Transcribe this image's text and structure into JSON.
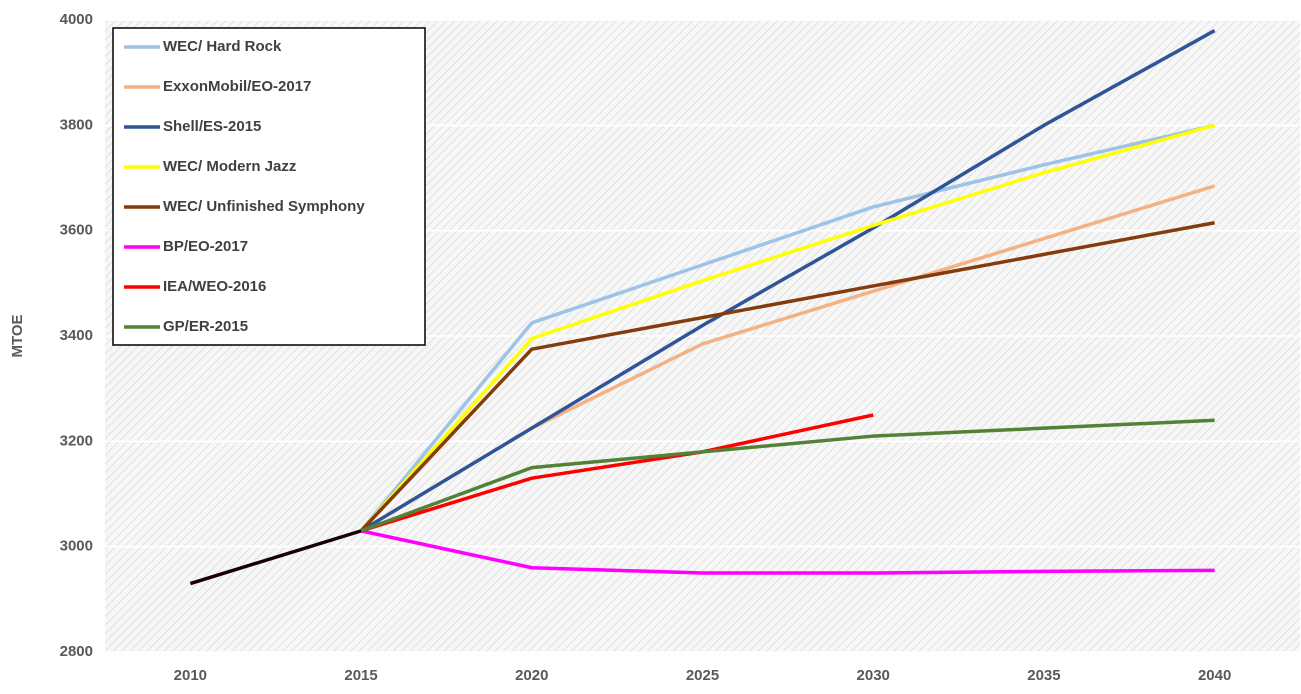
{
  "chart_data": {
    "type": "line",
    "y_label": "MTOE",
    "x": [
      2010,
      2015,
      2020,
      2025,
      2030,
      2035,
      2040
    ],
    "xlim": [
      2007.5,
      2042.5
    ],
    "xticks": [
      2010,
      2015,
      2020,
      2025,
      2030,
      2035,
      2040
    ],
    "ylim": [
      2800,
      4000
    ],
    "yticks": [
      2800,
      3000,
      3200,
      3400,
      3600,
      3800,
      4000
    ],
    "grid": true,
    "legend": "upper left",
    "series": [
      {
        "name": "WEC/ Hard Rock",
        "color": "#9dc3e6",
        "values": [
          null,
          3030,
          3425,
          3535,
          3645,
          3725,
          3800
        ]
      },
      {
        "name": "ExxonMobil/EO-2017",
        "color": "#f4b183",
        "values": [
          null,
          3030,
          3225,
          3385,
          3485,
          3585,
          3685
        ]
      },
      {
        "name": "Shell/ES-2015",
        "color": "#2f5597",
        "values": [
          null,
          3030,
          3225,
          3420,
          3605,
          3800,
          3980
        ]
      },
      {
        "name": "WEC/ Modern Jazz",
        "color": "#ffff00",
        "values": [
          null,
          3030,
          3395,
          3505,
          3610,
          3710,
          3800
        ]
      },
      {
        "name": "WEC/ Unfinished Symphony",
        "color": "#843c0c",
        "values": [
          null,
          3030,
          3375,
          3435,
          3495,
          3555,
          3615
        ]
      },
      {
        "name": "BP/EO-2017",
        "color": "#ff00ff",
        "values": [
          null,
          3030,
          2960,
          2950,
          2950,
          2953,
          2955
        ]
      },
      {
        "name": "IEA/WEO-2016",
        "color": "#ff0000",
        "values": [
          null,
          3030,
          3130,
          3180,
          3250,
          null,
          null
        ]
      },
      {
        "name": "GP/ER-2015",
        "color": "#538135",
        "values": [
          null,
          3030,
          3150,
          3180,
          3210,
          3225,
          3240
        ]
      },
      {
        "color": "#1a0000",
        "values": [
          2930,
          3030,
          null,
          null,
          null,
          null,
          null
        ]
      }
    ]
  }
}
